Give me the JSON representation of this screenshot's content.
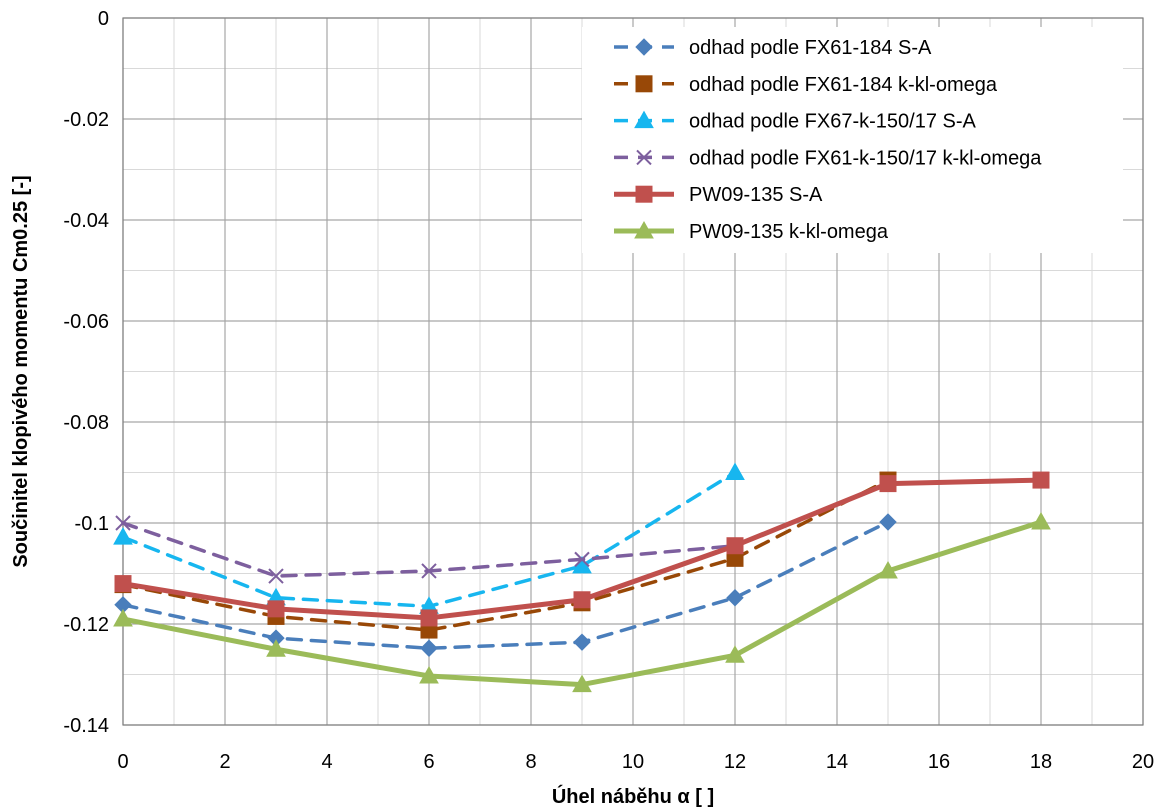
{
  "chart_data": {
    "type": "line",
    "xlabel": "Úhel náběhu α [ ]",
    "ylabel": "Součinitel klopivého momentu Cm0.25 [-]",
    "xlim": [
      0,
      20
    ],
    "ylim": [
      -0.14,
      0
    ],
    "x_ticks": [
      "0",
      "2",
      "4",
      "6",
      "8",
      "10",
      "12",
      "14",
      "16",
      "18",
      "20"
    ],
    "y_ticks": [
      "0",
      "-0.02",
      "-0.04",
      "-0.06",
      "-0.08",
      "-0.1",
      "-0.12",
      "-0.14"
    ],
    "grid": true,
    "minor_grid": true,
    "legend_position": "top-right",
    "series": [
      {
        "name": "odhad podle FX61-184 S-A",
        "color": "#4A7EBB",
        "dash": true,
        "marker": "diamond",
        "x": [
          0,
          3,
          6,
          9,
          12,
          15
        ],
        "y": [
          -0.1162,
          -0.1228,
          -0.1248,
          -0.1236,
          -0.1148,
          -0.0998
        ]
      },
      {
        "name": "odhad podle FX61-184 k-kl-omega",
        "color": "#984807",
        "dash": true,
        "marker": "square",
        "x": [
          0,
          3,
          6,
          9,
          12,
          15
        ],
        "y": [
          -0.1122,
          -0.1185,
          -0.1212,
          -0.1158,
          -0.107,
          -0.0915
        ]
      },
      {
        "name": "odhad podle FX67-k-150/17 S-A",
        "color": "#17B6EF",
        "dash": true,
        "marker": "triangle",
        "x": [
          0,
          3,
          6,
          9,
          12
        ],
        "y": [
          -0.1028,
          -0.1148,
          -0.1165,
          -0.1085,
          -0.09
        ]
      },
      {
        "name": "odhad podle FX61-k-150/17 k-kl-omega",
        "color": "#7D5F9E",
        "dash": true,
        "marker": "x",
        "x": [
          0,
          3,
          6,
          9,
          12
        ],
        "y": [
          -0.1,
          -0.1105,
          -0.1095,
          -0.1072,
          -0.1045
        ]
      },
      {
        "name": "PW09-135 S-A",
        "color": "#C0504D",
        "dash": false,
        "marker": "square",
        "x": [
          0,
          3,
          6,
          9,
          12,
          15,
          18
        ],
        "y": [
          -0.112,
          -0.117,
          -0.1188,
          -0.1152,
          -0.1045,
          -0.0922,
          -0.0915
        ]
      },
      {
        "name": "PW09-135 k-kl-omega",
        "color": "#9BBB59",
        "dash": false,
        "marker": "triangle",
        "x": [
          0,
          3,
          6,
          9,
          12,
          15,
          18
        ],
        "y": [
          -0.119,
          -0.125,
          -0.1303,
          -0.132,
          -0.1262,
          -0.1095,
          -0.0998
        ]
      }
    ]
  }
}
